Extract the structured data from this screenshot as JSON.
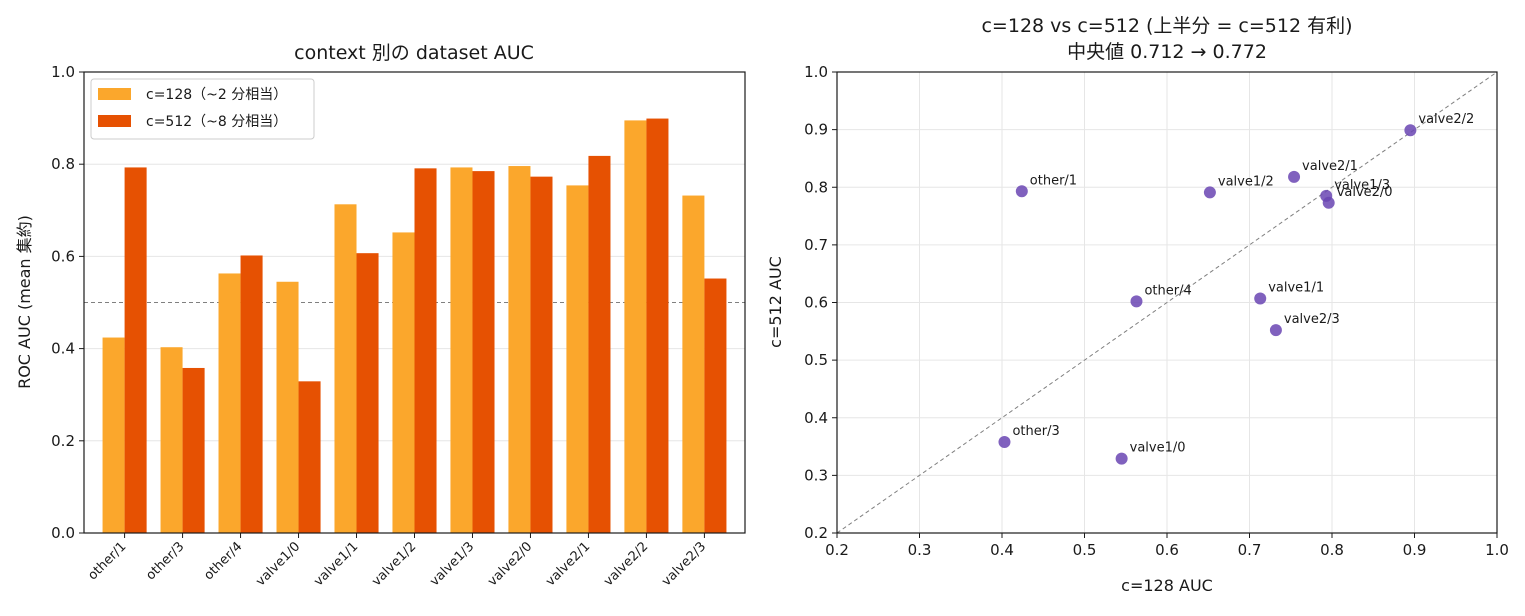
{
  "chart_data": [
    {
      "type": "bar",
      "title": "context 別の dataset AUC",
      "xlabel": "",
      "ylabel": "ROC AUC (mean 集約)",
      "ylim": [
        0,
        1
      ],
      "yticks": [
        "0.0",
        "0.2",
        "0.4",
        "0.6",
        "0.8",
        "1.0"
      ],
      "grid": "y",
      "legend_position": "top-left",
      "reference_line": 0.5,
      "categories": [
        "other/1",
        "other/3",
        "other/4",
        "valve1/0",
        "valve1/1",
        "valve1/2",
        "valve1/3",
        "valve2/0",
        "valve2/1",
        "valve2/2",
        "valve2/3"
      ],
      "series": [
        {
          "name": "c=128（~2 分相当）",
          "color": "#fba72c",
          "values": [
            0.424,
            0.403,
            0.563,
            0.545,
            0.713,
            0.652,
            0.793,
            0.796,
            0.754,
            0.895,
            0.732
          ]
        },
        {
          "name": "c=512（~8 分相当）",
          "color": "#e65102",
          "values": [
            0.793,
            0.358,
            0.602,
            0.329,
            0.607,
            0.791,
            0.785,
            0.773,
            0.818,
            0.899,
            0.552
          ]
        }
      ]
    },
    {
      "type": "scatter",
      "title": "c=128 vs c=512 (上半分 = c=512 有利)",
      "subtitle": "中央値 0.712 → 0.772",
      "xlabel": "c=128 AUC",
      "ylabel": "c=512 AUC",
      "xlim": [
        0.2,
        1.0
      ],
      "ylim": [
        0.2,
        1.0
      ],
      "xticks": [
        "0.2",
        "0.3",
        "0.4",
        "0.5",
        "0.6",
        "0.7",
        "0.8",
        "0.9",
        "1.0"
      ],
      "yticks": [
        "0.2",
        "0.3",
        "0.4",
        "0.5",
        "0.6",
        "0.7",
        "0.8",
        "0.9",
        "1.0"
      ],
      "grid": "both",
      "diagonal_line": true,
      "point_color": "#6a45b3",
      "points": [
        {
          "label": "other/1",
          "x": 0.424,
          "y": 0.793
        },
        {
          "label": "other/3",
          "x": 0.403,
          "y": 0.358
        },
        {
          "label": "other/4",
          "x": 0.563,
          "y": 0.602
        },
        {
          "label": "valve1/0",
          "x": 0.545,
          "y": 0.329
        },
        {
          "label": "valve1/1",
          "x": 0.713,
          "y": 0.607
        },
        {
          "label": "valve1/2",
          "x": 0.652,
          "y": 0.791
        },
        {
          "label": "valve1/3",
          "x": 0.793,
          "y": 0.785
        },
        {
          "label": "valve2/0",
          "x": 0.796,
          "y": 0.773
        },
        {
          "label": "valve2/1",
          "x": 0.754,
          "y": 0.818
        },
        {
          "label": "valve2/2",
          "x": 0.895,
          "y": 0.899
        },
        {
          "label": "valve2/3",
          "x": 0.732,
          "y": 0.552
        }
      ]
    }
  ]
}
